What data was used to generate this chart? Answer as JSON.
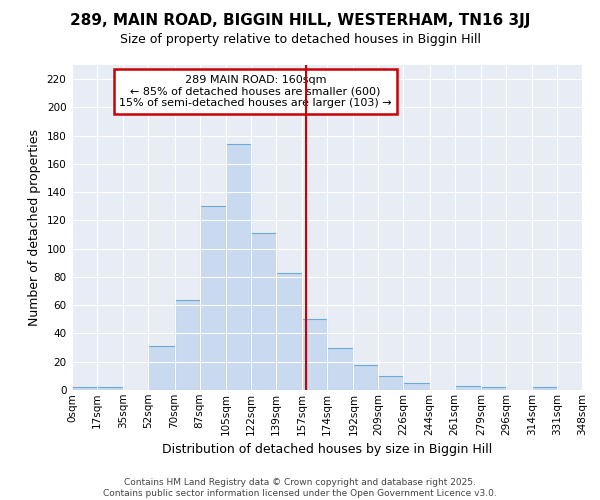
{
  "title": "289, MAIN ROAD, BIGGIN HILL, WESTERHAM, TN16 3JJ",
  "subtitle": "Size of property relative to detached houses in Biggin Hill",
  "xlabel": "Distribution of detached houses by size in Biggin Hill",
  "ylabel": "Number of detached properties",
  "bin_edges": [
    0,
    17,
    35,
    52,
    70,
    87,
    105,
    122,
    139,
    157,
    174,
    192,
    209,
    226,
    244,
    261,
    279,
    296,
    314,
    331,
    348
  ],
  "bar_heights": [
    2,
    2,
    0,
    31,
    64,
    130,
    174,
    111,
    83,
    50,
    30,
    18,
    10,
    5,
    0,
    3,
    2,
    0,
    2,
    0
  ],
  "bar_color": "#c9d9ef",
  "bar_edgecolor": "#6aaad4",
  "fig_background_color": "#ffffff",
  "plot_background_color": "#e8edf5",
  "grid_color": "#ffffff",
  "vline_x": 160,
  "vline_color": "#cc0000",
  "annotation_text": "289 MAIN ROAD: 160sqm\n← 85% of detached houses are smaller (600)\n15% of semi-detached houses are larger (103) →",
  "annotation_box_edgecolor": "#cc0000",
  "annotation_box_facecolor": "#ffffff",
  "ylim": [
    0,
    230
  ],
  "yticks": [
    0,
    20,
    40,
    60,
    80,
    100,
    120,
    140,
    160,
    180,
    200,
    220
  ],
  "tick_labels": [
    "0sqm",
    "17sqm",
    "35sqm",
    "52sqm",
    "70sqm",
    "87sqm",
    "105sqm",
    "122sqm",
    "139sqm",
    "157sqm",
    "174sqm",
    "192sqm",
    "209sqm",
    "226sqm",
    "244sqm",
    "261sqm",
    "279sqm",
    "296sqm",
    "314sqm",
    "331sqm",
    "348sqm"
  ],
  "footer_text": "Contains HM Land Registry data © Crown copyright and database right 2025.\nContains public sector information licensed under the Open Government Licence v3.0.",
  "title_fontsize": 11,
  "subtitle_fontsize": 9,
  "axis_label_fontsize": 9,
  "tick_fontsize": 7.5,
  "annotation_fontsize": 8,
  "footer_fontsize": 6.5
}
